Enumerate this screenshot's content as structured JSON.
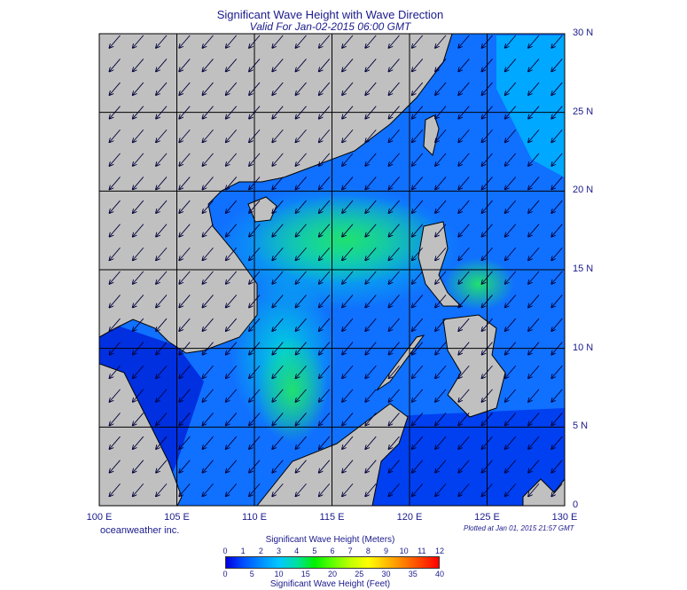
{
  "title": "Significant Wave Height with Wave Direction",
  "subtitle": "Valid For Jan-02-2015 06:00 GMT",
  "credit": "oceanweather inc.",
  "plotted": "Plotted at Jan 01, 2015 21:57 GMT",
  "map": {
    "lon_range": [
      100,
      130
    ],
    "lat_range": [
      0,
      30
    ],
    "lat_labels": [
      "0",
      "5 N",
      "10 N",
      "15 N",
      "20 N",
      "25 N",
      "30 N"
    ],
    "lon_labels": [
      "100 E",
      "105 E",
      "110 E",
      "115 E",
      "120 E",
      "125 E",
      "130 E"
    ],
    "land_color": "#c0c0c0",
    "wave_direction": "from northeast (arrows point southwest)"
  },
  "colorbar": {
    "title_meters": "Significant Wave Height (Meters)",
    "title_feet": "Significant Wave Height (Feet)",
    "meter_ticks": [
      "0",
      "1",
      "2",
      "3",
      "4",
      "5",
      "6",
      "7",
      "8",
      "9",
      "10",
      "11",
      "12"
    ],
    "feet_ticks": [
      "0",
      "5",
      "10",
      "15",
      "20",
      "25",
      "30",
      "35",
      "40"
    ],
    "colors": [
      "#0000e0",
      "#0050ff",
      "#0090ff",
      "#00c8ff",
      "#00e0a0",
      "#00f000",
      "#60ff00",
      "#c0ff00",
      "#ffff00",
      "#ffc000",
      "#ff8000",
      "#ff4000",
      "#ff0000"
    ]
  }
}
